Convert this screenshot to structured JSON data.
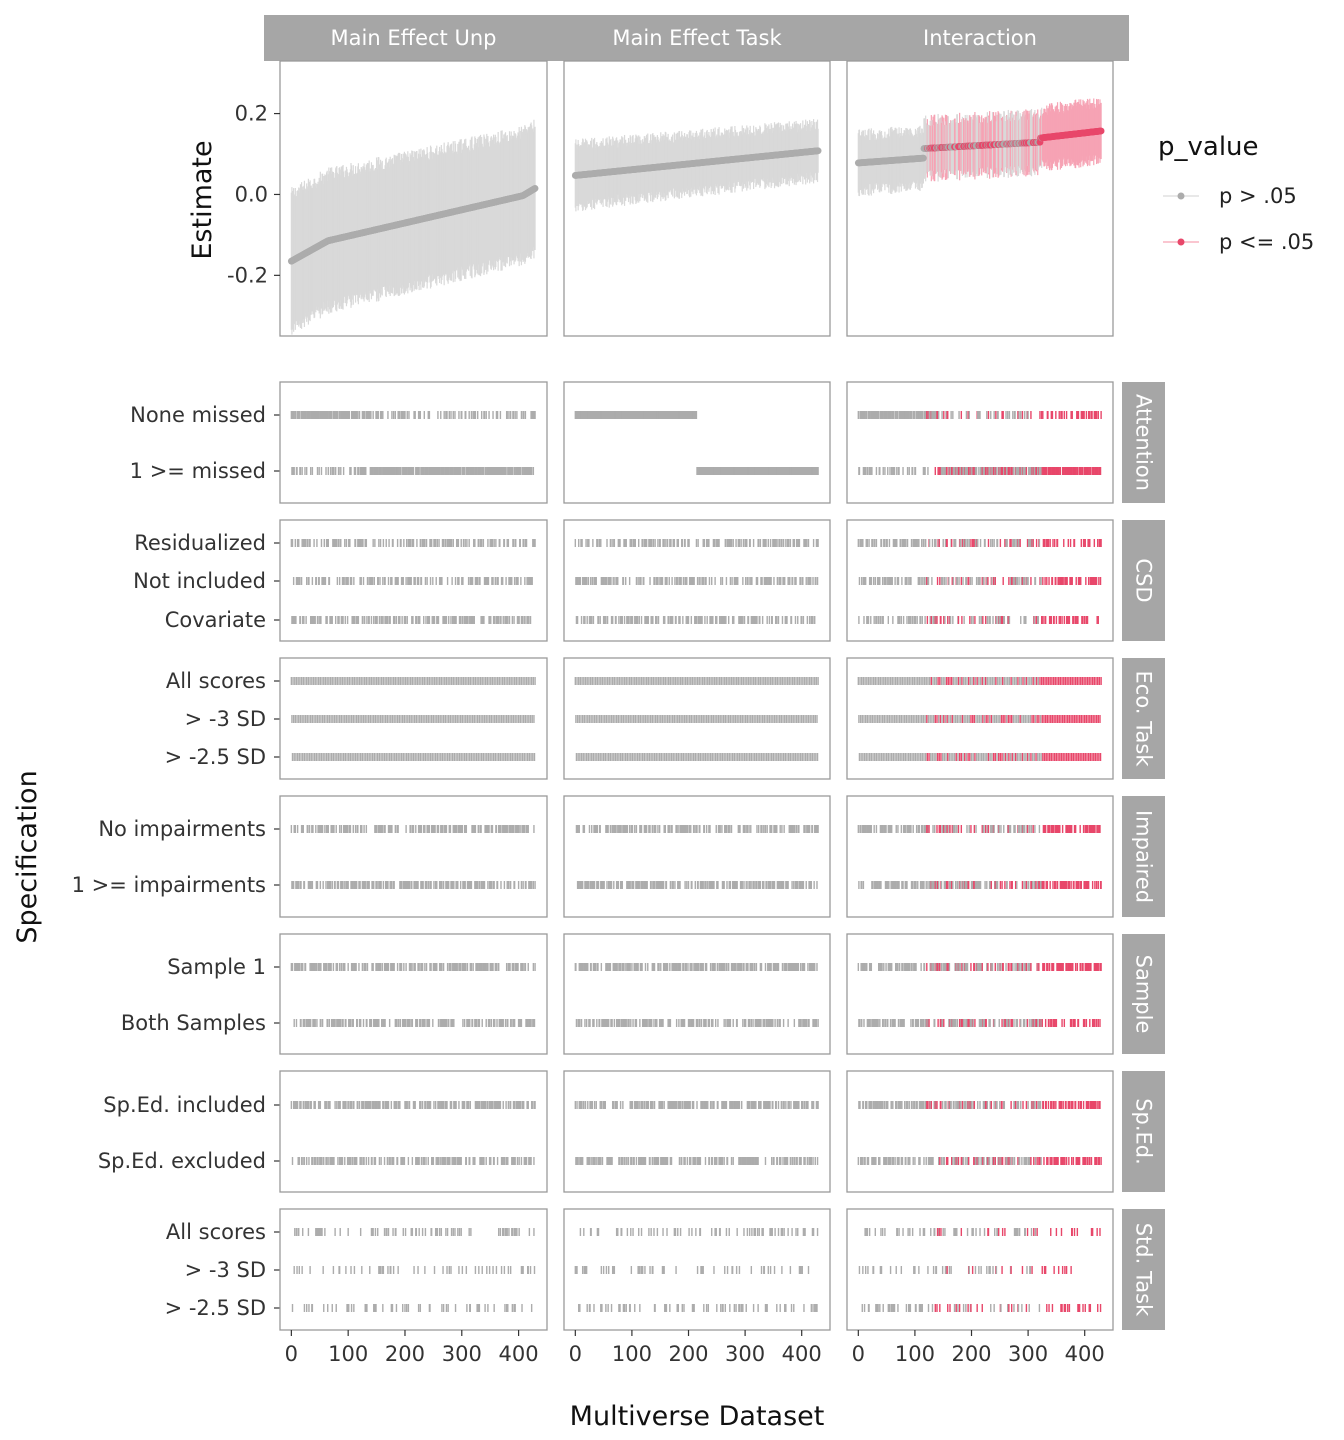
{
  "chart_data": [
    {
      "type": "scatter",
      "title": "",
      "xlabel": "",
      "ylabel": "Estimate",
      "xlim": [
        -20,
        450
      ],
      "ylim": [
        -0.35,
        0.33
      ],
      "yticks": [
        0.2,
        0.0,
        -0.2
      ],
      "ytick_labels": [
        "0.2",
        "0.0",
        "-0.2"
      ],
      "error_bars": true,
      "facets": [
        {
          "label": "Main Effect Unp",
          "n": 430,
          "start": -0.165,
          "end": 0.015,
          "ci_half": [
            0.165,
            0.155
          ],
          "jitter": 0.012,
          "shape": "s",
          "sig_from": null,
          "sig_mode": "none"
        },
        {
          "label": "Main Effect Task",
          "n": 430,
          "start": 0.047,
          "end": 0.108,
          "ci_half": [
            0.075,
            0.065
          ],
          "jitter": 0.01,
          "shape": "lin",
          "sig_from": null,
          "sig_mode": "none"
        },
        {
          "label": "Interaction",
          "n": 430,
          "start": 0.078,
          "end": 0.157,
          "ci_half": [
            0.068,
            0.07
          ],
          "jitter": 0.01,
          "shape": "steps",
          "sig_from": 120,
          "sig_mode": "mixed",
          "sig_all_from": 325
        }
      ],
      "legend": {
        "title": "p_value",
        "position": "right",
        "entries": [
          {
            "label": "p > .05",
            "color": "#b3b3b3"
          },
          {
            "label": "p <= .05",
            "color": "#e8476a"
          }
        ]
      },
      "colors": {
        "ns_point": "#acacac",
        "ns_bar": "#d9d9d9",
        "sig_point": "#e8476a",
        "sig_bar": "#f6a3b4"
      }
    },
    {
      "type": "scatter",
      "title": "",
      "xlabel": "Multiverse Dataset",
      "ylabel": "Specification",
      "xlim": [
        -20,
        450
      ],
      "xticks": [
        0,
        100,
        200,
        300,
        400
      ],
      "xtick_labels": [
        "0",
        "100",
        "200",
        "300",
        "400"
      ],
      "grid": false,
      "groups": [
        {
          "label": "Attention",
          "options": [
            "None missed",
            "1 >= missed"
          ],
          "pattern": "block",
          "period": 2
        },
        {
          "label": "CSD",
          "options": [
            "Residualized",
            "Not included",
            "Covariate"
          ],
          "pattern": "stripe",
          "period": 3
        },
        {
          "label": "Eco. Task",
          "options": [
            "All scores",
            "> -3 SD",
            "> -2.5 SD"
          ],
          "pattern": "dense",
          "period": 3
        },
        {
          "label": "Impaired",
          "options": [
            "No impairments",
            "1 >= impairments"
          ],
          "pattern": "chunk",
          "period": 2
        },
        {
          "label": "Sample",
          "options": [
            "Sample 1",
            "Both Samples"
          ],
          "pattern": "chunk",
          "period": 2
        },
        {
          "label": "Sp.Ed.",
          "options": [
            "Sp.Ed. included",
            "Sp.Ed. excluded"
          ],
          "pattern": "chunk",
          "period": 2
        },
        {
          "label": "Std. Task",
          "options": [
            "All scores",
            "> -3 SD",
            "> -2.5 SD"
          ],
          "pattern": "sparse",
          "period": 3
        }
      ]
    }
  ]
}
